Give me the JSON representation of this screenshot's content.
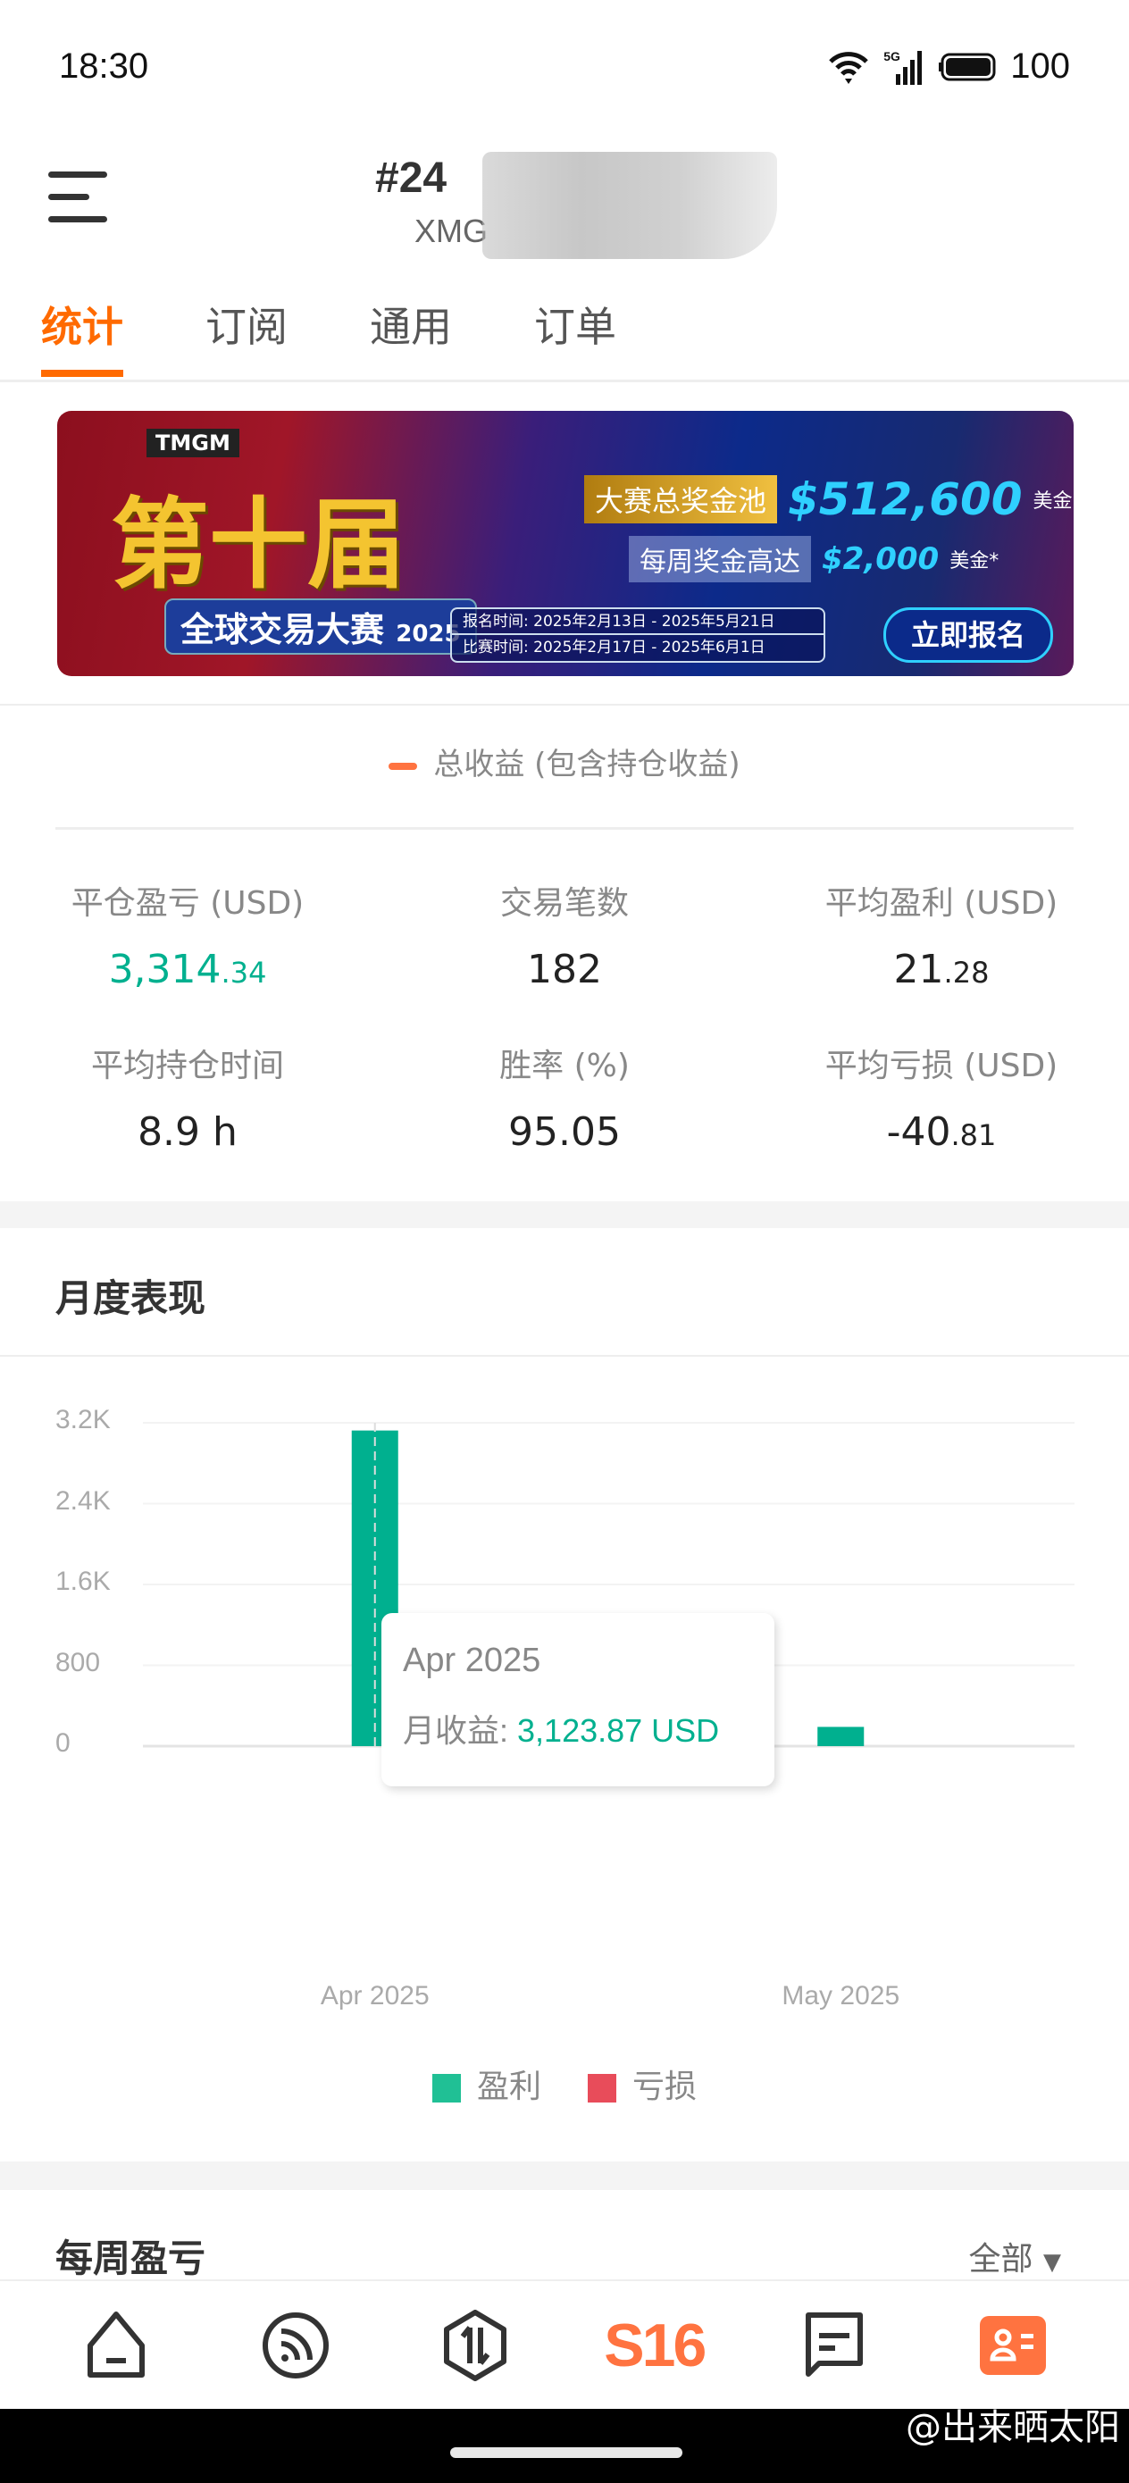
{
  "status_bar": {
    "time": "18:30",
    "network": "5G",
    "battery": "100"
  },
  "header": {
    "title": "#24",
    "subtitle": "XMG"
  },
  "tabs": [
    {
      "label": "统计"
    },
    {
      "label": "订阅"
    },
    {
      "label": "通用"
    },
    {
      "label": "订单"
    }
  ],
  "banner": {
    "logo": "TMGM",
    "edition": "第十届",
    "name": "全球交易大赛",
    "year": "2025",
    "pool_label": "大赛总奖金池",
    "pool_amount": "$512,600",
    "pool_unit": "美金",
    "weekly_label": "每周奖金高达",
    "weekly_amount": "$2,000",
    "weekly_unit": "美金*",
    "signup": "报名时间: 2025年2月13日 - 2025年5月21日",
    "contest": "比赛时间: 2025年2月17日 - 2025年6月1日",
    "cta": "立即报名"
  },
  "legend_total": "总收益 (包含持仓收益)",
  "stats": [
    {
      "label": "平仓盈亏 (USD)",
      "int": "3,314",
      "dec": ".34",
      "color": "#00b08f"
    },
    {
      "label": "交易笔数",
      "int": "182",
      "dec": ""
    },
    {
      "label": "平均盈利 (USD)",
      "int": "21",
      "dec": ".28"
    },
    {
      "label": "平均持仓时间",
      "int": "8.9 h",
      "dec": ""
    },
    {
      "label": "胜率 (%)",
      "int": "95.05",
      "dec": ""
    },
    {
      "label": "平均亏损 (USD)",
      "int": "-40",
      "dec": ".81"
    }
  ],
  "monthly": {
    "title": "月度表现"
  },
  "chart_data": {
    "type": "bar",
    "categories": [
      "Apr 2025",
      "May 2025"
    ],
    "series": [
      {
        "name": "盈利",
        "color": "#00b08f",
        "values": [
          3123.87,
          190.47
        ]
      },
      {
        "name": "亏损",
        "color": "#e84c5a",
        "values": [
          0,
          0
        ]
      }
    ],
    "ylim": [
      0,
      3200
    ],
    "yticks": [
      "0",
      "800",
      "1.6K",
      "2.4K",
      "3.2K"
    ],
    "grid": true,
    "legend": "bottom",
    "tooltip": {
      "title": "Apr 2025",
      "label": "月收益:",
      "value": "3,123.87 USD"
    }
  },
  "weekly": {
    "title": "每周盈亏",
    "filter": "全部"
  },
  "nav": [
    {
      "icon": "home-icon"
    },
    {
      "icon": "feed-icon"
    },
    {
      "icon": "trade-icon"
    },
    {
      "icon": "s16-icon",
      "label": "S16"
    },
    {
      "icon": "message-icon"
    },
    {
      "icon": "profile-card-icon"
    }
  ],
  "watermark": "@出来晒太阳"
}
